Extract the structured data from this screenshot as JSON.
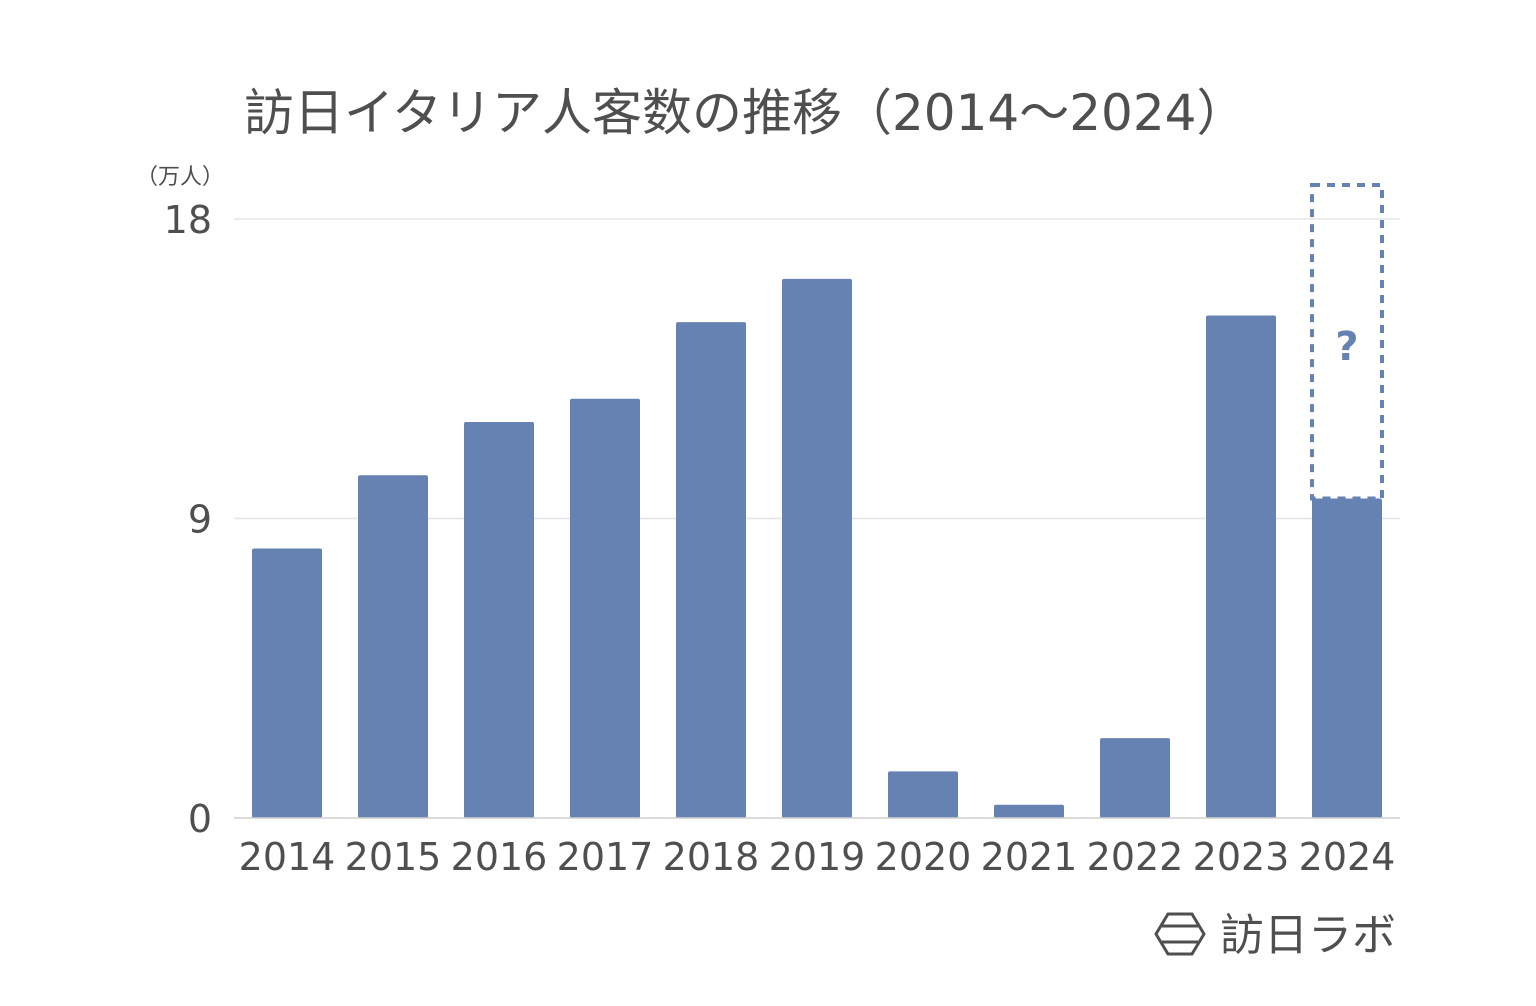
{
  "chart_data": {
    "type": "bar",
    "title": "訪日イタリア人客数の推移（2014〜2024）",
    "ylabel": "（万人）",
    "categories": [
      "2014",
      "2015",
      "2016",
      "2017",
      "2018",
      "2019",
      "2020",
      "2021",
      "2022",
      "2023",
      "2024"
    ],
    "values": [
      8.1,
      10.3,
      11.9,
      12.6,
      14.9,
      16.2,
      1.4,
      0.4,
      2.4,
      15.1,
      9.6
    ],
    "ylim": [
      0,
      18
    ],
    "yticks": [
      "0",
      "9",
      "18"
    ],
    "grid": true,
    "annotation": "?",
    "annotation_category": "2024",
    "bar_color": "#6682b2",
    "grid_color": "#e6e6e6"
  },
  "brand": {
    "name": "訪日ラボ",
    "icon": "hexagon-logo-icon"
  }
}
